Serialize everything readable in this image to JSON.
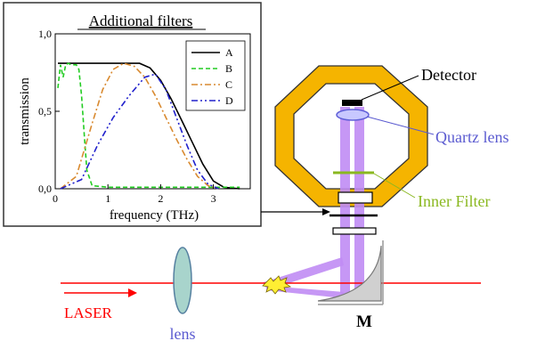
{
  "labels": {
    "detector": "Detector",
    "quartz_lens": "Quartz lens",
    "inner_filter": "Inner Filter",
    "laser": "LASER",
    "lens": "lens",
    "mirror": "M"
  },
  "colors": {
    "octagon": "#f5b400",
    "beam_purple": "#c08cf4",
    "laser": "#ff0000",
    "quartz_lens": "#7070e0",
    "inner_filter": "#8ab820",
    "lens_fill": "#a8d4cc",
    "series_a": "#000000",
    "series_b": "#22cc22",
    "series_c": "#d98a30",
    "series_d": "#2020cc"
  },
  "chart_data": {
    "type": "line",
    "title": "Additional filters",
    "xlabel": "frequency (THz)",
    "ylabel": "transmission",
    "xlim": [
      0,
      3.7
    ],
    "ylim": [
      0,
      1.0
    ],
    "xticks": [
      "0",
      "1",
      "2",
      "3"
    ],
    "yticks": [
      "0,0",
      "0,5",
      "1,0"
    ],
    "legend_position": "top-right",
    "series": [
      {
        "name": "A",
        "style": "solid",
        "x": [
          0.05,
          0.3,
          0.6,
          1.0,
          1.3,
          1.6,
          1.8,
          2.0,
          2.2,
          2.4,
          2.6,
          2.8,
          3.0,
          3.2,
          3.5
        ],
        "y": [
          0.81,
          0.81,
          0.81,
          0.81,
          0.81,
          0.81,
          0.78,
          0.7,
          0.58,
          0.44,
          0.3,
          0.16,
          0.05,
          0.01,
          0.0
        ]
      },
      {
        "name": "B",
        "style": "dashed",
        "x": [
          0.05,
          0.1,
          0.15,
          0.2,
          0.25,
          0.3,
          0.35,
          0.4,
          0.45,
          0.5,
          0.55,
          0.6,
          0.7,
          1.0,
          2.0,
          3.0,
          3.5
        ],
        "y": [
          0.65,
          0.8,
          0.72,
          0.8,
          0.81,
          0.8,
          0.8,
          0.8,
          0.77,
          0.6,
          0.35,
          0.12,
          0.02,
          0.01,
          0.01,
          0.01,
          0.01
        ]
      },
      {
        "name": "C",
        "style": "dashdot",
        "x": [
          0.1,
          0.4,
          0.7,
          0.9,
          1.1,
          1.3,
          1.5,
          1.7,
          1.9,
          2.1,
          2.3,
          2.5,
          2.7,
          2.9,
          3.1
        ],
        "y": [
          0.0,
          0.08,
          0.42,
          0.64,
          0.77,
          0.81,
          0.79,
          0.72,
          0.6,
          0.46,
          0.32,
          0.19,
          0.08,
          0.02,
          0.0
        ]
      },
      {
        "name": "D",
        "style": "dashdotdot",
        "x": [
          0.1,
          0.5,
          0.8,
          1.1,
          1.4,
          1.7,
          1.9,
          2.1,
          2.3,
          2.5,
          2.7,
          2.9,
          3.1
        ],
        "y": [
          0.0,
          0.06,
          0.28,
          0.46,
          0.6,
          0.72,
          0.74,
          0.64,
          0.46,
          0.28,
          0.12,
          0.03,
          0.0
        ]
      }
    ]
  }
}
